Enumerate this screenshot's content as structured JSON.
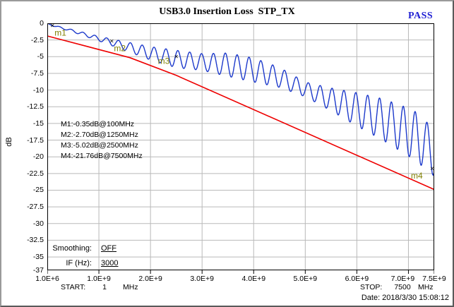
{
  "window": {
    "title": "USB3.0 Insertion Loss  STP_TX",
    "status": "PASS",
    "status_color": "#1F1FD3",
    "date": "Date: 2018/3/30 15:08:12"
  },
  "controls": {
    "smoothing_label": "Smoothing:",
    "smoothing_value": "OFF",
    "if_label": "IF (Hz):",
    "if_value": "3000"
  },
  "sweep": {
    "start_label": "START:",
    "start_value": "1",
    "start_unit": "MHz",
    "stop_label": "STOP:",
    "stop_value": "7500",
    "stop_unit": "MHz"
  },
  "marker_readout": [
    "M1:-0.35dB@100MHz",
    "M2:-2.70dB@1250MHz",
    "M3:-5.02dB@2500MHz",
    "M4:-21.76dB@7500MHz"
  ],
  "chart_data": {
    "type": "line",
    "title": "USB3.0 Insertion Loss  STP_TX",
    "ylabel": "dB",
    "xlabel": "",
    "x_unit": "Hz",
    "xlim_ghz": [
      0.001,
      7.5
    ],
    "ylim": [
      -37,
      0
    ],
    "grid": true,
    "grid_color": "#b9b9b9",
    "x_ticks": [
      {
        "label": "1.0E+6",
        "ghz": 0.001
      },
      {
        "label": "1.0E+9",
        "ghz": 1
      },
      {
        "label": "2.0E+9",
        "ghz": 2
      },
      {
        "label": "3.0E+9",
        "ghz": 3
      },
      {
        "label": "4.0E+9",
        "ghz": 4
      },
      {
        "label": "5.0E+9",
        "ghz": 5
      },
      {
        "label": "6.0E+9",
        "ghz": 6
      },
      {
        "label": "7.0E+9",
        "ghz": 7
      },
      {
        "label": "7.5E+9",
        "ghz": 7.5
      }
    ],
    "y_ticks": [
      {
        "label": "0",
        "db": 0
      },
      {
        "label": "-2.5",
        "db": -2.5
      },
      {
        "label": "-5",
        "db": -5
      },
      {
        "label": "-7.5",
        "db": -7.5
      },
      {
        "label": "-10",
        "db": -10
      },
      {
        "label": "-12.5",
        "db": -12.5
      },
      {
        "label": "-15",
        "db": -15
      },
      {
        "label": "-17.5",
        "db": -17.5
      },
      {
        "label": "-20",
        "db": -20
      },
      {
        "label": "-22.5",
        "db": -22.5
      },
      {
        "label": "-25",
        "db": -25
      },
      {
        "label": "-27.5",
        "db": -27.5
      },
      {
        "label": "-30",
        "db": -30
      },
      {
        "label": "-32.5",
        "db": -32.5
      },
      {
        "label": "-35",
        "db": -35
      },
      {
        "label": "-37",
        "db": -37
      }
    ],
    "series": [
      {
        "name": "measured_insertion_loss",
        "color": "#1C39CB",
        "style": "rippled",
        "ripple_period_ghz": 0.23,
        "center_points": [
          [
            0,
            -0.05
          ],
          [
            0.1,
            -0.32
          ],
          [
            0.5,
            -1.15
          ],
          [
            1.0,
            -2.3
          ],
          [
            1.25,
            -2.85
          ],
          [
            1.5,
            -3.4
          ],
          [
            2.0,
            -4.5
          ],
          [
            2.5,
            -5.35
          ],
          [
            3.0,
            -5.8
          ],
          [
            3.5,
            -6.2
          ],
          [
            4.0,
            -7.0
          ],
          [
            4.5,
            -8.1
          ],
          [
            5.0,
            -9.9
          ],
          [
            5.5,
            -11.4
          ],
          [
            6.0,
            -12.9
          ],
          [
            6.5,
            -14.4
          ],
          [
            7.0,
            -16.3
          ],
          [
            7.25,
            -17.5
          ],
          [
            7.5,
            -19.6
          ]
        ],
        "amplitude_points": [
          [
            0,
            0.05
          ],
          [
            0.5,
            0.18
          ],
          [
            1.0,
            0.35
          ],
          [
            1.5,
            0.65
          ],
          [
            2.0,
            1.0
          ],
          [
            2.5,
            1.3
          ],
          [
            3.0,
            1.25
          ],
          [
            3.5,
            1.75
          ],
          [
            4.0,
            1.8
          ],
          [
            4.5,
            1.5
          ],
          [
            5.0,
            1.1
          ],
          [
            5.5,
            1.7
          ],
          [
            6.0,
            2.5
          ],
          [
            6.5,
            3.1
          ],
          [
            7.0,
            3.6
          ],
          [
            7.25,
            3.8
          ],
          [
            7.5,
            3.3
          ]
        ]
      },
      {
        "name": "limit_line",
        "color": "#EE0000",
        "style": "polyline",
        "points": [
          [
            0.001,
            -1.9
          ],
          [
            1.6,
            -5.15
          ],
          [
            2.5,
            -7.8
          ],
          [
            7.5,
            -24.9
          ]
        ]
      }
    ],
    "markers": [
      {
        "label": "m1",
        "ghz": 0.1,
        "db": -0.35
      },
      {
        "label": "m2",
        "ghz": 1.25,
        "db": -2.7
      },
      {
        "label": "m3",
        "ghz": 2.5,
        "db": -5.02
      },
      {
        "label": "m4",
        "ghz": 7.5,
        "db": -21.76
      }
    ],
    "marker_label_color": "#7f7f00"
  }
}
